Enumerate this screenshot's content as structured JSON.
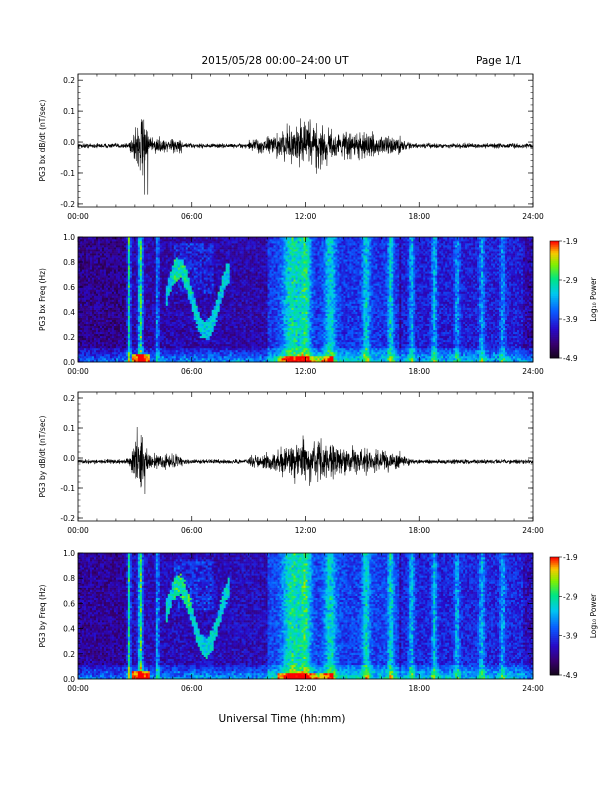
{
  "header": {
    "title": "2015/05/28  00:00–24:00 UT",
    "page": "Page 1/1"
  },
  "footer": {
    "xlabel": "Universal Time (hh:mm)"
  },
  "colorbar": {
    "ticks": [
      "-1.9",
      "-2.9",
      "-3.9",
      "-4.9"
    ],
    "label": "Log₁₀ Power"
  },
  "chart_data": [
    {
      "type": "line",
      "ylabel": "PG3 bx dB/dt (nT/sec)",
      "x_ticks": [
        "00:00",
        "06:00",
        "12:00",
        "18:00",
        "24:00"
      ],
      "y_ticks": [
        "0.2",
        "0.1",
        "0.0",
        "-0.1",
        "-0.2"
      ],
      "xlim": [
        0,
        24
      ],
      "ylim": [
        -0.21,
        0.22
      ],
      "series": [
        {
          "x": [
            0,
            2.5,
            3.0,
            3.2,
            3.4,
            3.6,
            4.2,
            5,
            7,
            9,
            10.5,
            11.5,
            12,
            12.5,
            13,
            14,
            15,
            16,
            17,
            18,
            20,
            22,
            24
          ],
          "y": [
            0.0,
            0.0,
            0.02,
            0.06,
            -0.17,
            0.05,
            0.01,
            0.0,
            0.0,
            0.0,
            0.02,
            0.05,
            0.07,
            0.05,
            0.03,
            0.02,
            0.02,
            0.01,
            0.0,
            0.0,
            0.0,
            0.0,
            0.0
          ]
        }
      ]
    },
    {
      "type": "heatmap",
      "ylabel": "PG3 bx Freq (Hz)",
      "x_ticks": [
        "00:00",
        "06:00",
        "12:00",
        "18:00",
        "24:00"
      ],
      "y_ticks": [
        "1.0",
        "0.8",
        "0.6",
        "0.4",
        "0.2",
        "0.0"
      ],
      "xlim": [
        0,
        24
      ],
      "ylim": [
        0,
        1.0
      ],
      "zlim": [
        -4.9,
        -1.9
      ],
      "zlabel": "Log₁₀ Power"
    },
    {
      "type": "line",
      "ylabel": "PG3 by dB/dt (nT/sec)",
      "x_ticks": [
        "00:00",
        "06:00",
        "12:00",
        "18:00",
        "24:00"
      ],
      "y_ticks": [
        "0.2",
        "0.1",
        "0.0",
        "-0.1",
        "-0.2"
      ],
      "xlim": [
        0,
        24
      ],
      "ylim": [
        -0.21,
        0.22
      ],
      "series": [
        {
          "x": [
            0,
            2.5,
            3.0,
            3.2,
            3.4,
            3.6,
            4.2,
            5,
            7,
            9,
            10.5,
            11.5,
            12,
            12.5,
            13,
            14,
            15,
            16,
            17,
            18,
            20,
            22,
            24
          ],
          "y": [
            0.0,
            0.0,
            0.03,
            0.07,
            -0.12,
            0.04,
            0.01,
            0.0,
            0.0,
            0.0,
            0.02,
            0.04,
            0.06,
            0.04,
            0.03,
            0.02,
            0.02,
            0.01,
            0.0,
            0.0,
            0.0,
            0.0,
            0.0
          ]
        }
      ]
    },
    {
      "type": "heatmap",
      "ylabel": "PG3 by Freq (Hz)",
      "x_ticks": [
        "00:00",
        "06:00",
        "12:00",
        "18:00",
        "24:00"
      ],
      "y_ticks": [
        "1.0",
        "0.8",
        "0.6",
        "0.4",
        "0.2",
        "0.0"
      ],
      "xlim": [
        0,
        24
      ],
      "ylim": [
        0,
        1.0
      ],
      "zlim": [
        -4.9,
        -1.9
      ],
      "zlabel": "Log₁₀ Power"
    }
  ]
}
